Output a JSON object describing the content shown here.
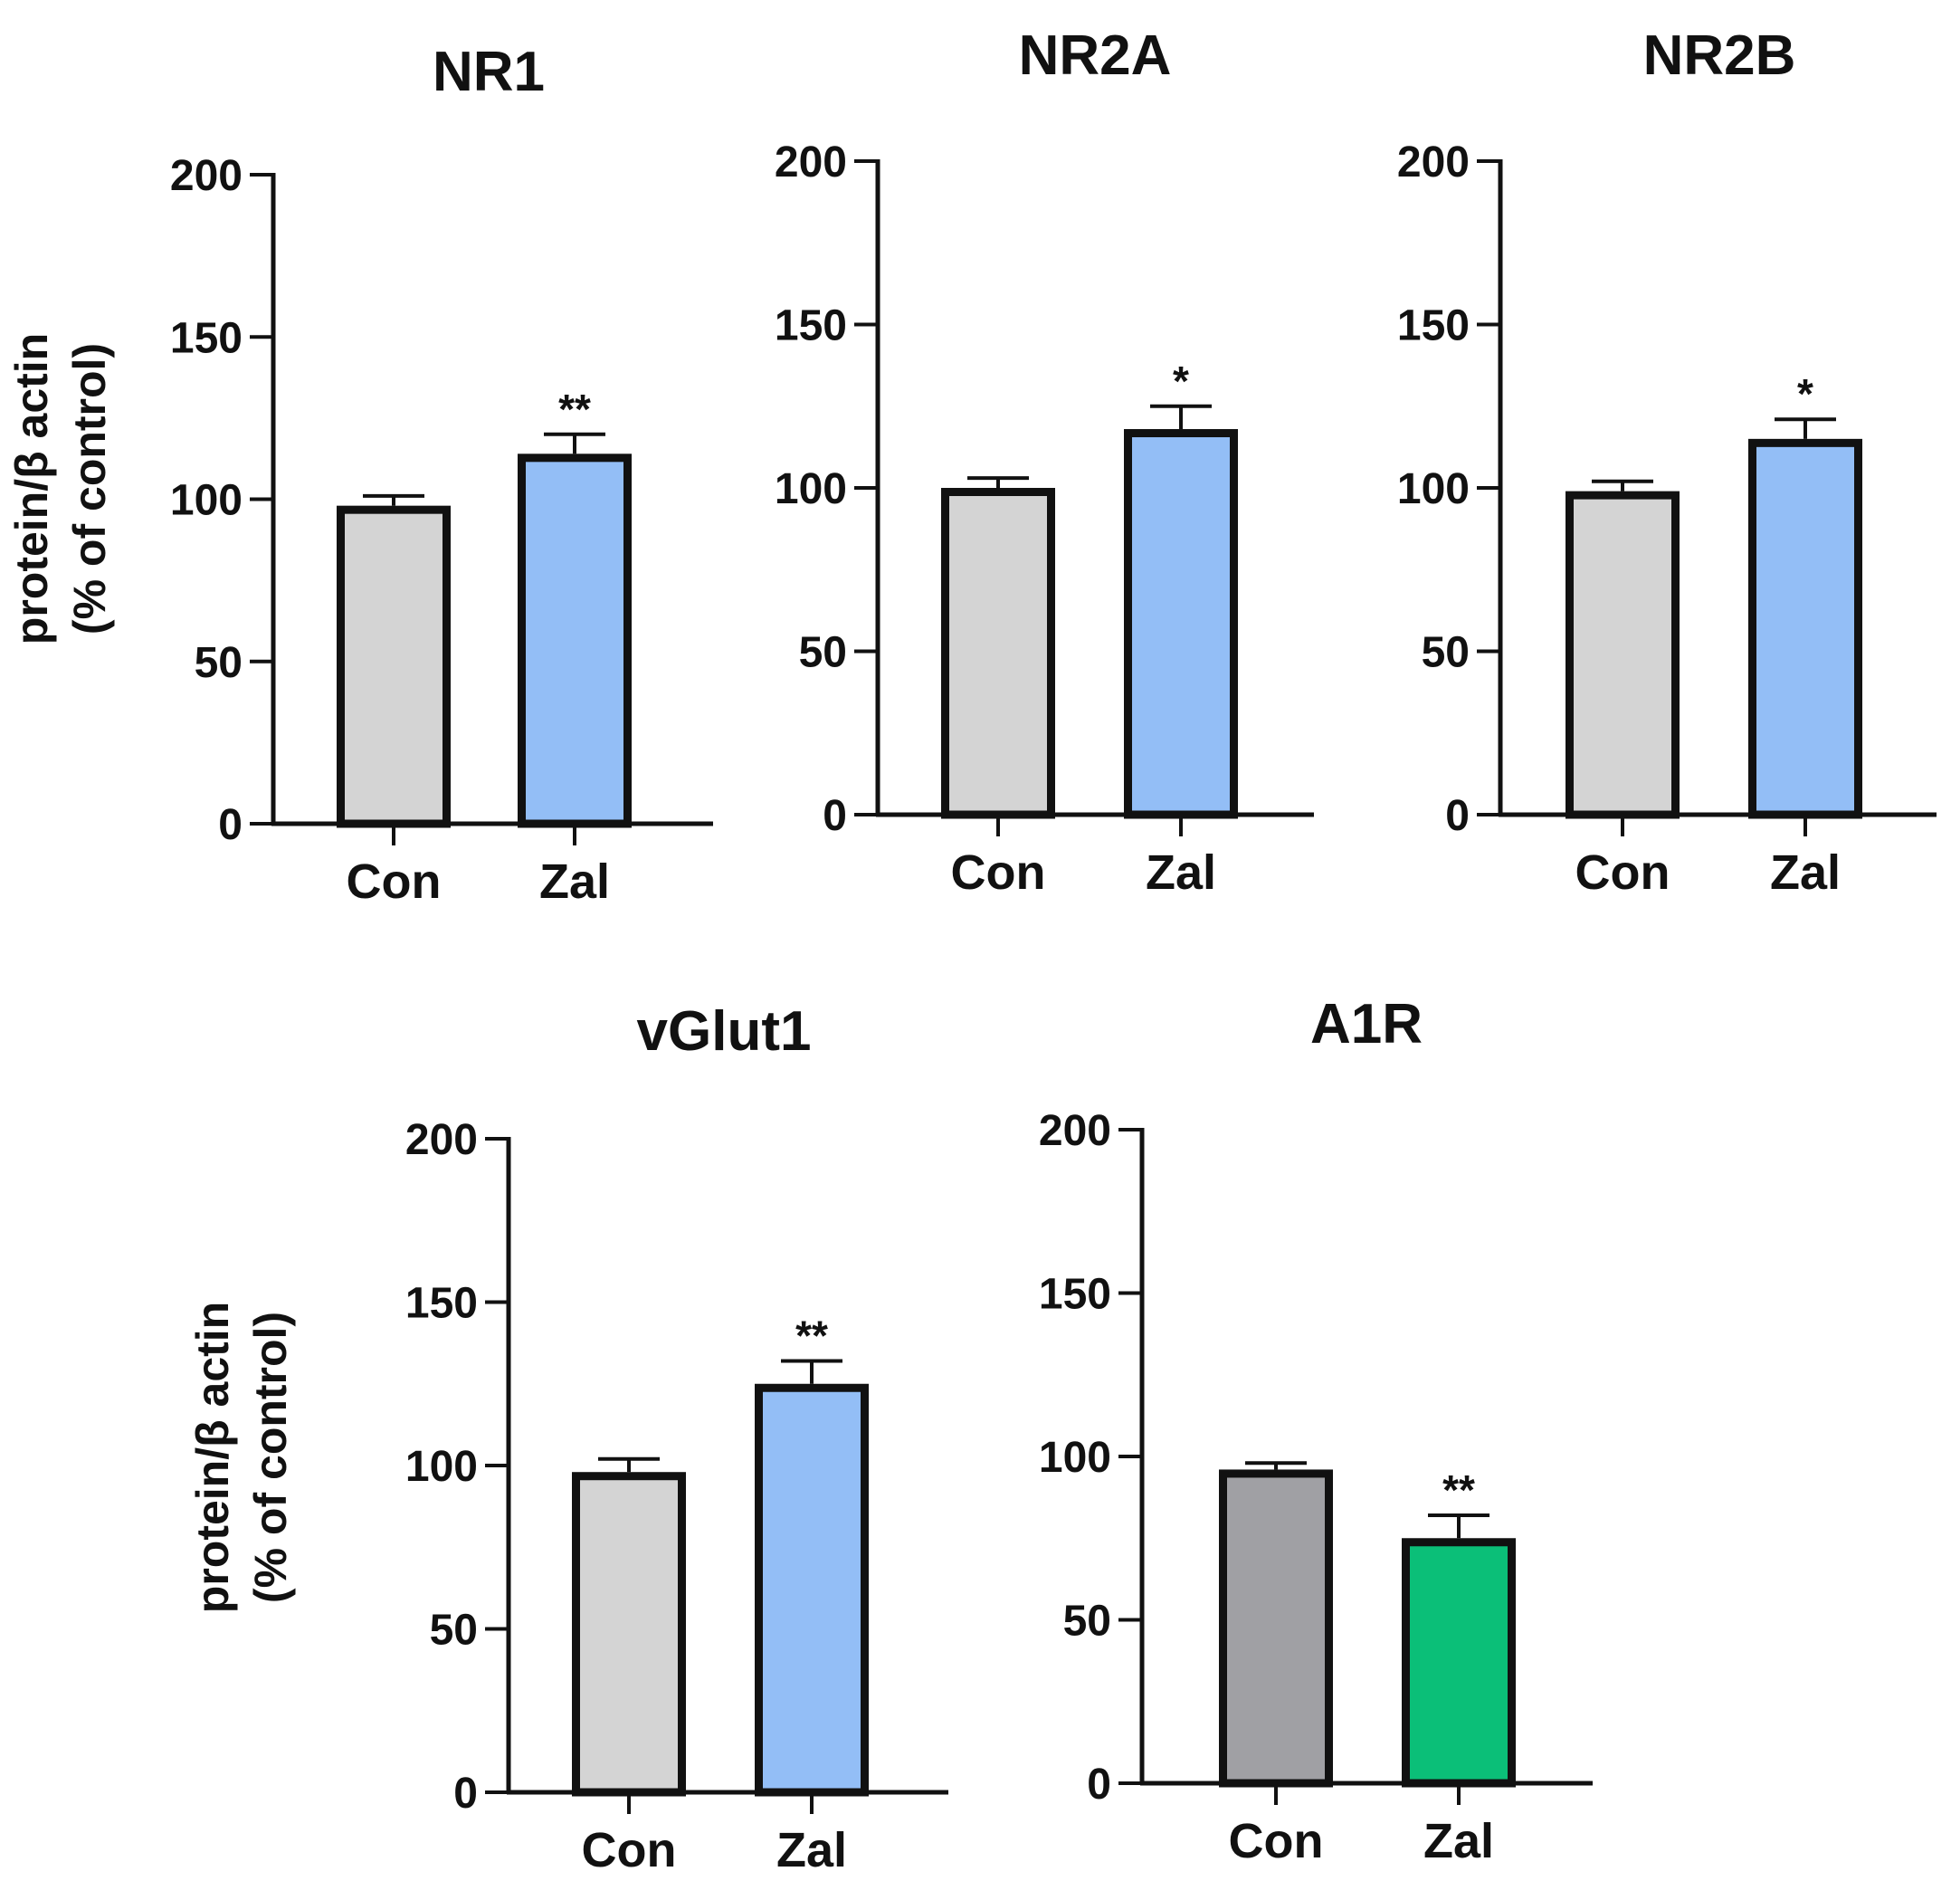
{
  "figure": {
    "ylabel_line1": "protein/β actin",
    "ylabel_line2": "(% of control)"
  },
  "chart_data": [
    {
      "type": "bar",
      "title": "NR1",
      "categories": [
        "Con",
        "Zal"
      ],
      "values": [
        98,
        114
      ],
      "errors": [
        3,
        6
      ],
      "significance": [
        "",
        "**"
      ],
      "colors": [
        "#d4d4d4",
        "#93bef6"
      ],
      "ylim": [
        0,
        200
      ],
      "yticks": [
        "0",
        "50",
        "100",
        "150",
        "200"
      ],
      "ylabel": "protein/β actin (% of control)"
    },
    {
      "type": "bar",
      "title": "NR2A",
      "categories": [
        "Con",
        "Zal"
      ],
      "values": [
        100,
        118
      ],
      "errors": [
        3,
        7
      ],
      "significance": [
        "",
        "*"
      ],
      "colors": [
        "#d4d4d4",
        "#93bef6"
      ],
      "ylim": [
        0,
        200
      ],
      "yticks": [
        "0",
        "50",
        "100",
        "150",
        "200"
      ],
      "ylabel": ""
    },
    {
      "type": "bar",
      "title": "NR2B",
      "categories": [
        "Con",
        "Zal"
      ],
      "values": [
        99,
        115
      ],
      "errors": [
        3,
        6
      ],
      "significance": [
        "",
        "*"
      ],
      "colors": [
        "#d4d4d4",
        "#93bef6"
      ],
      "ylim": [
        0,
        200
      ],
      "yticks": [
        "0",
        "50",
        "100",
        "150",
        "200"
      ],
      "ylabel": ""
    },
    {
      "type": "bar",
      "title": "vGlut1",
      "categories": [
        "Con",
        "Zal"
      ],
      "values": [
        98,
        125
      ],
      "errors": [
        4,
        7
      ],
      "significance": [
        "",
        "**"
      ],
      "colors": [
        "#d4d4d4",
        "#93bef6"
      ],
      "ylim": [
        0,
        200
      ],
      "yticks": [
        "0",
        "50",
        "100",
        "150",
        "200"
      ],
      "ylabel": "protein/β actin (% of control)"
    },
    {
      "type": "bar",
      "title": "A1R",
      "categories": [
        "Con",
        "Zal"
      ],
      "values": [
        96,
        75
      ],
      "errors": [
        2,
        7
      ],
      "significance": [
        "",
        "**"
      ],
      "colors": [
        "#a0a0a4",
        "#0bbf78"
      ],
      "ylim": [
        0,
        200
      ],
      "yticks": [
        "0",
        "50",
        "100",
        "150",
        "200"
      ],
      "ylabel": ""
    }
  ]
}
